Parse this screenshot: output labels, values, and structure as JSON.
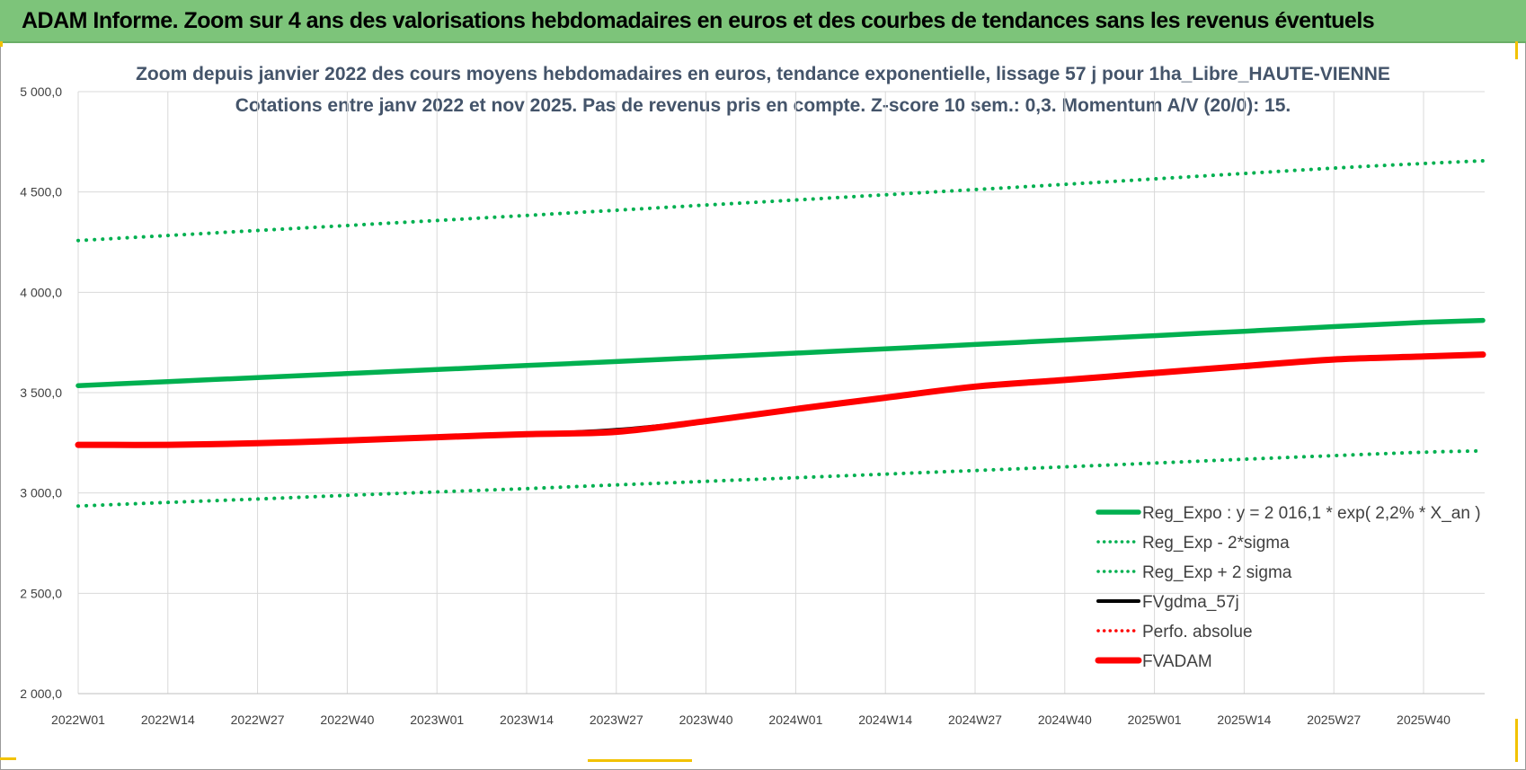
{
  "banner": {
    "title": "ADAM Informe. Zoom sur 4 ans des valorisations hebdomadaires en euros et des courbes de tendances sans les revenus éventuels"
  },
  "colors": {
    "banner_green": "#7dc47a",
    "trend_green": "#00b050",
    "black": "#000000",
    "red": "#ff0000",
    "accent_yellow": "#f2c200"
  },
  "chart_data": {
    "type": "line",
    "title": "Zoom depuis janvier 2022 des cours moyens hebdomadaires en euros, tendance exponentielle, lissage 57 j pour 1ha_Libre_HAUTE-VIENNE",
    "subtitle": "Cotations entre janv 2022 et nov 2025. Pas de revenus pris en compte. Z-score 10 sem.: 0,3. Momentum A/V (20/0): 15.",
    "xlabel": "",
    "ylabel": "",
    "ylim": [
      2000,
      5000
    ],
    "y_ticks": [
      "2 000,0",
      "2 500,0",
      "3 000,0",
      "3 500,0",
      "4 000,0",
      "4 500,0",
      "5 000,0"
    ],
    "x_ticks": [
      "2022W01",
      "2022W14",
      "2022W27",
      "2022W40",
      "2023W01",
      "2023W14",
      "2023W27",
      "2023W40",
      "2024W01",
      "2024W14",
      "2024W27",
      "2024W40",
      "2025W01",
      "2025W14",
      "2025W27",
      "2025W40"
    ],
    "grid": true,
    "legend_position": "bottom-right",
    "series": [
      {
        "name": "Reg_Expo : y = 2 016,1 * exp( 2,2% *  X_an )",
        "style": "solid-thick",
        "color": "#00b050",
        "x": [
          "2022W01",
          "2022W14",
          "2022W27",
          "2022W40",
          "2023W01",
          "2023W14",
          "2023W27",
          "2023W40",
          "2024W01",
          "2024W14",
          "2024W27",
          "2024W40",
          "2025W01",
          "2025W14",
          "2025W27",
          "2025W40",
          "2025W48"
        ],
        "values": [
          3535,
          3555,
          3575,
          3595,
          3615,
          3635,
          3655,
          3676,
          3697,
          3718,
          3740,
          3762,
          3784,
          3806,
          3829,
          3850,
          3860
        ]
      },
      {
        "name": "Reg_Exp - 2*sigma",
        "style": "dotted",
        "color": "#00b050",
        "x": [
          "2022W01",
          "2022W14",
          "2022W27",
          "2022W40",
          "2023W01",
          "2023W14",
          "2023W27",
          "2023W40",
          "2024W01",
          "2024W14",
          "2024W27",
          "2024W40",
          "2025W01",
          "2025W14",
          "2025W27",
          "2025W40",
          "2025W48"
        ],
        "values": [
          2935,
          2953,
          2970,
          2988,
          3005,
          3022,
          3040,
          3058,
          3076,
          3094,
          3112,
          3130,
          3149,
          3168,
          3186,
          3203,
          3210
        ]
      },
      {
        "name": "Reg_Exp + 2 sigma",
        "style": "dotted",
        "color": "#00b050",
        "x": [
          "2022W01",
          "2022W14",
          "2022W27",
          "2022W40",
          "2023W01",
          "2023W14",
          "2023W27",
          "2023W40",
          "2024W01",
          "2024W14",
          "2024W27",
          "2024W40",
          "2025W01",
          "2025W14",
          "2025W27",
          "2025W40",
          "2025W48"
        ],
        "values": [
          4258,
          4283,
          4308,
          4333,
          4358,
          4383,
          4409,
          4435,
          4460,
          4486,
          4512,
          4538,
          4565,
          4592,
          4619,
          4642,
          4655
        ]
      },
      {
        "name": "FVgdma_57j",
        "style": "solid",
        "color": "#000000",
        "x": [
          "2022W01",
          "2022W14",
          "2022W27",
          "2022W40",
          "2023W01",
          "2023W14",
          "2023W27",
          "2023W40",
          "2024W01",
          "2024W14",
          "2024W27",
          "2024W40",
          "2025W01",
          "2025W14",
          "2025W27",
          "2025W40",
          "2025W48"
        ],
        "values": [
          3240,
          3240,
          3248,
          3262,
          3278,
          3293,
          3315,
          3360,
          3418,
          3475,
          3530,
          3563,
          3598,
          3632,
          3665,
          3680,
          3690
        ]
      },
      {
        "name": "Perfo. absolue",
        "style": "dotted",
        "color": "#ff0000",
        "x": [
          "2022W01",
          "2022W14",
          "2022W27",
          "2022W40",
          "2023W01",
          "2023W14",
          "2023W27",
          "2023W40",
          "2024W01",
          "2024W14",
          "2024W27",
          "2024W40",
          "2025W01",
          "2025W14",
          "2025W27",
          "2025W40",
          "2025W48"
        ],
        "values": [
          3240,
          3240,
          3248,
          3262,
          3278,
          3293,
          3310,
          3358,
          3418,
          3475,
          3530,
          3563,
          3598,
          3632,
          3665,
          3680,
          3690
        ]
      },
      {
        "name": "FVADAM",
        "style": "solid-thick",
        "color": "#ff0000",
        "x": [
          "2022W01",
          "2022W14",
          "2022W27",
          "2022W40",
          "2023W01",
          "2023W14",
          "2023W27",
          "2023W40",
          "2024W01",
          "2024W14",
          "2024W27",
          "2024W40",
          "2025W01",
          "2025W14",
          "2025W27",
          "2025W40",
          "2025W48"
        ],
        "values": [
          3240,
          3240,
          3248,
          3262,
          3278,
          3293,
          3305,
          3358,
          3418,
          3475,
          3530,
          3563,
          3598,
          3632,
          3665,
          3680,
          3690
        ]
      }
    ]
  }
}
